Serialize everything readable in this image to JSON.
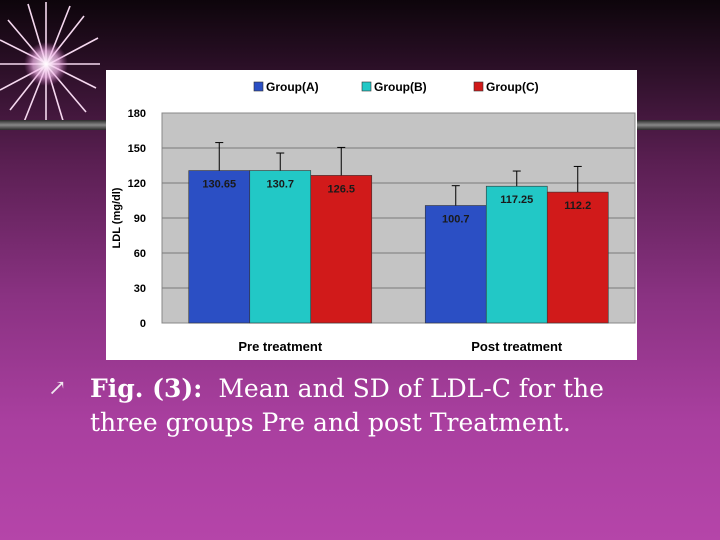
{
  "slide": {
    "bullet_glyph": "↗",
    "caption_lead": "Fig. (3):",
    "caption_line1": "Mean and SD of LDL-C for the",
    "caption_line2": "three groups Pre and post Treatment."
  },
  "chart_data": {
    "type": "bar",
    "title": "",
    "xlabel": "",
    "ylabel": "LDL (mg/dl)",
    "categories": [
      "Pre treatment",
      "Post treatment"
    ],
    "ylim": [
      0,
      180
    ],
    "yticks": [
      "0",
      "30",
      "60",
      "90",
      "120",
      "150",
      "180"
    ],
    "grid": true,
    "legend_position": "top",
    "series": [
      {
        "name": "Group(A)",
        "values": [
          130.65,
          100.7
        ],
        "labels": [
          "130.65",
          "100.7"
        ],
        "sd": [
          24,
          17
        ],
        "color": "#2b4fc4"
      },
      {
        "name": "Group(B)",
        "values": [
          130.7,
          117.25
        ],
        "labels": [
          "130.7",
          "117.25"
        ],
        "sd": [
          15,
          13
        ],
        "color": "#22c8c6"
      },
      {
        "name": "Group(C)",
        "values": [
          126.5,
          112.2
        ],
        "labels": [
          "126.5",
          "112.2"
        ],
        "sd": [
          24,
          22
        ],
        "color": "#d11a1a"
      }
    ]
  }
}
